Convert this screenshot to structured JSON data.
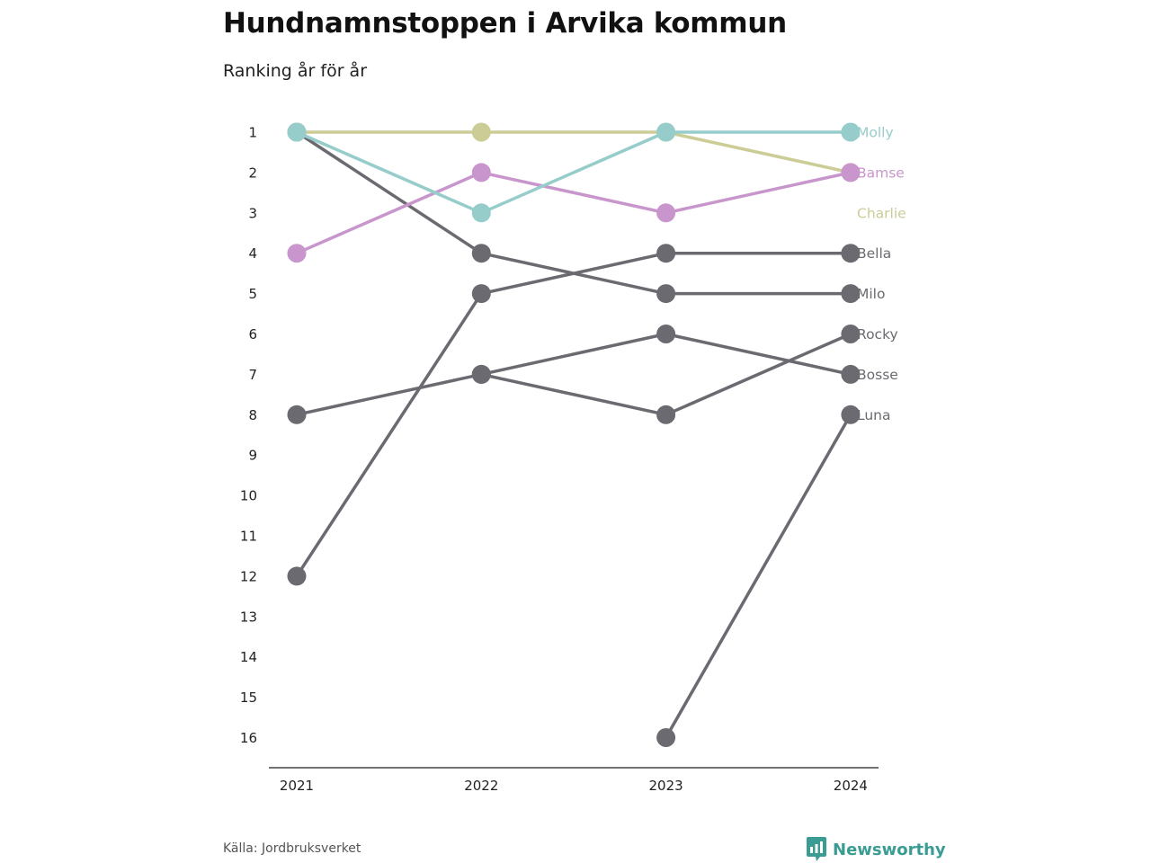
{
  "title": "Hundnamnstoppen i Arvika kommun",
  "subtitle": "Ranking år för år",
  "source": "Källa: Jordbruksverket",
  "brand": "Newsworthy",
  "colors": {
    "Molly": "#96cdcb",
    "Bamse": "#c896cc",
    "Charlie": "#cccc96",
    "default": "#6b6a71"
  },
  "chart_data": {
    "type": "line",
    "subtype": "bump",
    "x": [
      2021,
      2022,
      2023,
      2024
    ],
    "y_ticks": [
      1,
      2,
      3,
      4,
      5,
      6,
      7,
      8,
      9,
      10,
      11,
      12,
      13,
      14,
      15,
      16
    ],
    "ylim": [
      1,
      16
    ],
    "y_reversed": true,
    "series": [
      {
        "name": "Milo",
        "values": [
          1,
          4,
          5,
          5
        ]
      },
      {
        "name": "Bella",
        "values": [
          12,
          5,
          4,
          4
        ]
      },
      {
        "name": "Bosse",
        "values": [
          8,
          7,
          6,
          7
        ]
      },
      {
        "name": "Rocky",
        "values": [
          null,
          7,
          8,
          6
        ]
      },
      {
        "name": "Luna",
        "values": [
          null,
          null,
          16,
          8
        ]
      },
      {
        "name": "Charlie",
        "values": [
          1,
          1,
          1,
          2
        ]
      },
      {
        "name": "Bamse",
        "values": [
          4,
          2,
          3,
          2
        ]
      },
      {
        "name": "Molly",
        "values": [
          1,
          3,
          1,
          1
        ]
      }
    ]
  }
}
